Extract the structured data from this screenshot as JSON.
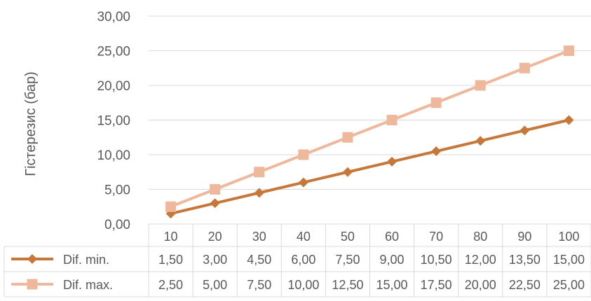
{
  "chart_data": {
    "type": "line",
    "title": "",
    "xlabel": "",
    "ylabel": "Гістерезис  (бар)",
    "categories": [
      "10",
      "20",
      "30",
      "40",
      "50",
      "60",
      "70",
      "80",
      "90",
      "100"
    ],
    "ylim": [
      0,
      30
    ],
    "yticks": [
      "0,00",
      "5,00",
      "10,00",
      "15,00",
      "20,00",
      "25,00",
      "30,00"
    ],
    "grid": "horizontal",
    "legend": "data-table-bottom",
    "series": [
      {
        "name": "Dif. min.",
        "color": "#C5783A",
        "marker": "diamond",
        "values": [
          1.5,
          3.0,
          4.5,
          6.0,
          7.5,
          9.0,
          10.5,
          12.0,
          13.5,
          15.0
        ],
        "labels": [
          "1,50",
          "3,00",
          "4,50",
          "6,00",
          "7,50",
          "9,00",
          "10,50",
          "12,00",
          "13,50",
          "15,00"
        ]
      },
      {
        "name": "Dif. max.",
        "color": "#EEB89C",
        "marker": "square",
        "values": [
          2.5,
          5.0,
          7.5,
          10.0,
          12.5,
          15.0,
          17.5,
          20.0,
          22.5,
          25.0
        ],
        "labels": [
          "2,50",
          "5,00",
          "7,50",
          "10,00",
          "12,50",
          "15,00",
          "17,50",
          "20,00",
          "22,50",
          "25,00"
        ]
      }
    ]
  }
}
